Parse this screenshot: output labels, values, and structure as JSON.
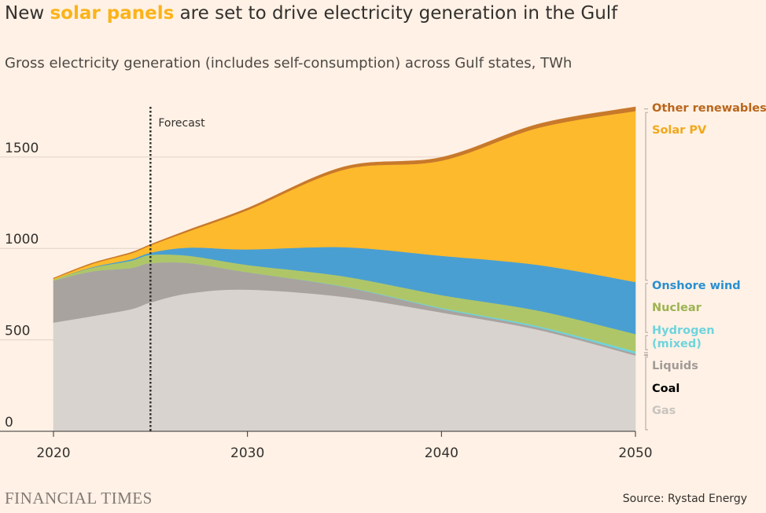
{
  "header": {
    "title_before": "New ",
    "title_highlight": "solar panels",
    "title_after": " are set to drive electricity generation in the Gulf",
    "subtitle": "Gross electricity generation (includes self-consumption) across Gulf states, TWh"
  },
  "footer": {
    "logo": "FINANCIAL TIMES",
    "source": "Source: Rystad Energy"
  },
  "chart_data": {
    "type": "area",
    "stacked": true,
    "x": [
      2020,
      2022,
      2024,
      2025,
      2027,
      2030,
      2035,
      2040,
      2045,
      2050
    ],
    "xlim": [
      2020,
      2050
    ],
    "ylim": [
      0,
      1800
    ],
    "x_ticks": [
      2020,
      2030,
      2040,
      2050
    ],
    "y_ticks": [
      0,
      500,
      1000,
      1500
    ],
    "grid": "horizontal",
    "forecast_marker": {
      "x": 2025,
      "label": "Forecast"
    },
    "legend_placement": "right",
    "series": [
      {
        "name": "Gas",
        "color": "#d8d3cf",
        "label_color": "#c9c4c0",
        "values": [
          595,
          630,
          668,
          705,
          755,
          775,
          735,
          650,
          555,
          415
        ]
      },
      {
        "name": "Coal",
        "color": "#000000",
        "label_color": "#000000",
        "values": [
          0,
          0,
          0,
          0,
          0,
          0,
          0,
          0,
          0,
          0
        ]
      },
      {
        "name": "Liquids",
        "color": "#a9a39f",
        "label_color": "#a19b97",
        "values": [
          230,
          245,
          225,
          215,
          165,
          95,
          55,
          20,
          12,
          10
        ]
      },
      {
        "name": "Hydrogen\n(mixed)",
        "color": "#6fd4dd",
        "label_color": "#6fd4dd",
        "values": [
          0,
          0,
          0,
          0,
          0,
          0,
          2,
          5,
          8,
          12
        ]
      },
      {
        "name": "Nuclear",
        "color": "#afc668",
        "label_color": "#9cb350",
        "values": [
          5,
          20,
          40,
          45,
          40,
          40,
          55,
          70,
          85,
          95
        ]
      },
      {
        "name": "Onshore wind",
        "color": "#4a9fd2",
        "label_color": "#2a8fcf",
        "values": [
          0,
          3,
          8,
          12,
          45,
          85,
          160,
          215,
          250,
          285
        ]
      },
      {
        "name": "Solar PV",
        "color": "#fdba2c",
        "label_color": "#f2a81d",
        "values": [
          5,
          18,
          32,
          40,
          90,
          215,
          425,
          520,
          750,
          935
        ]
      },
      {
        "name": "Other renewables",
        "color": "#c8792b",
        "label_color": "#b9661c",
        "values": [
          3,
          4,
          5,
          5,
          8,
          10,
          15,
          18,
          20,
          22
        ]
      }
    ]
  }
}
